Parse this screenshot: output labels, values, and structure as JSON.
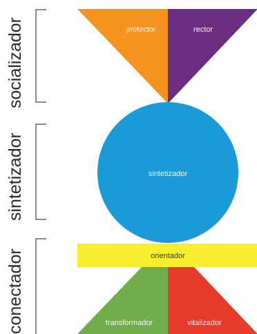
{
  "groups": {
    "socializador": {
      "label": "socializador",
      "left_shape": {
        "label": "protector",
        "color": "#f6921e"
      },
      "right_shape": {
        "label": "rector",
        "color": "#6a2d80"
      }
    },
    "sintetizador": {
      "label": "sintetizador",
      "shape": {
        "label": "sintetizador",
        "color": "#1a9bd7"
      }
    },
    "conectador": {
      "label": "conectador",
      "bar": {
        "label": "orientador",
        "color": "#f7ee2e"
      },
      "left_shape": {
        "label": "transformador",
        "color": "#72ad4c"
      },
      "right_shape": {
        "label": "vitalizador",
        "color": "#e63b2b"
      }
    }
  }
}
